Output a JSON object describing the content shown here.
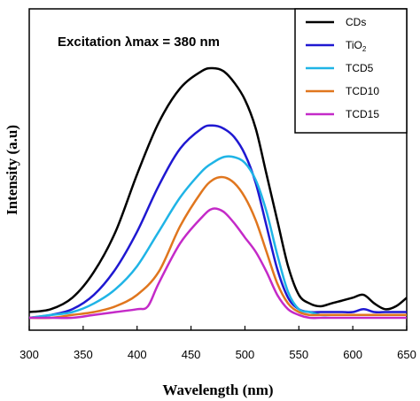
{
  "chart_data": {
    "type": "line",
    "title": "",
    "annotation": "Excitation λmax = 380 nm",
    "xlabel": "Wavelength (nm)",
    "ylabel": "Intensity (a.u)",
    "xlim": [
      300,
      650
    ],
    "ylim": [
      0,
      1.12
    ],
    "xticks": [
      300,
      350,
      400,
      450,
      500,
      550,
      600,
      650
    ],
    "grid": false,
    "legend_placement": "top-right",
    "series": [
      {
        "name": "CDs",
        "sub": "",
        "color": "#000000",
        "x": [
          300,
          320,
          340,
          360,
          380,
          400,
          420,
          440,
          460,
          470,
          480,
          490,
          500,
          510,
          520,
          530,
          540,
          550,
          560,
          570,
          580,
          590,
          600,
          610,
          620,
          630,
          640,
          650
        ],
        "y": [
          0.02,
          0.03,
          0.07,
          0.16,
          0.3,
          0.5,
          0.68,
          0.8,
          0.86,
          0.87,
          0.86,
          0.82,
          0.76,
          0.66,
          0.5,
          0.34,
          0.18,
          0.08,
          0.05,
          0.04,
          0.05,
          0.06,
          0.07,
          0.08,
          0.05,
          0.03,
          0.04,
          0.07
        ]
      },
      {
        "name": "TiO",
        "sub": "2",
        "color": "#1f18d1",
        "x": [
          300,
          320,
          340,
          360,
          380,
          400,
          420,
          440,
          460,
          470,
          480,
          490,
          500,
          510,
          520,
          530,
          540,
          550,
          560,
          570,
          580,
          590,
          600,
          610,
          620,
          630,
          640,
          650
        ],
        "y": [
          0.0,
          0.01,
          0.03,
          0.08,
          0.17,
          0.3,
          0.46,
          0.59,
          0.66,
          0.67,
          0.66,
          0.63,
          0.57,
          0.47,
          0.32,
          0.17,
          0.07,
          0.03,
          0.02,
          0.02,
          0.02,
          0.02,
          0.02,
          0.03,
          0.02,
          0.02,
          0.02,
          0.02
        ]
      },
      {
        "name": "TCD5",
        "sub": "",
        "color": "#1fb4e6",
        "x": [
          300,
          320,
          340,
          360,
          380,
          400,
          420,
          440,
          460,
          470,
          480,
          490,
          500,
          510,
          520,
          530,
          540,
          550,
          560,
          570,
          580,
          590,
          600,
          610,
          620,
          630,
          640,
          650
        ],
        "y": [
          0.0,
          0.01,
          0.02,
          0.05,
          0.1,
          0.18,
          0.3,
          0.42,
          0.51,
          0.54,
          0.56,
          0.56,
          0.54,
          0.48,
          0.37,
          0.22,
          0.09,
          0.03,
          0.02,
          0.01,
          0.01,
          0.01,
          0.01,
          0.01,
          0.01,
          0.01,
          0.01,
          0.01
        ]
      },
      {
        "name": "TCD10",
        "sub": "",
        "color": "#e0761e",
        "x": [
          300,
          320,
          340,
          360,
          380,
          400,
          420,
          440,
          460,
          470,
          480,
          490,
          500,
          510,
          520,
          530,
          540,
          550,
          560,
          570,
          580,
          590,
          600,
          610,
          620,
          630,
          640,
          650
        ],
        "y": [
          0.0,
          0.0,
          0.01,
          0.02,
          0.04,
          0.08,
          0.16,
          0.32,
          0.44,
          0.48,
          0.49,
          0.47,
          0.42,
          0.34,
          0.23,
          0.12,
          0.05,
          0.02,
          0.01,
          0.01,
          0.01,
          0.01,
          0.01,
          0.01,
          0.01,
          0.01,
          0.01,
          0.01
        ]
      },
      {
        "name": "TCD15",
        "sub": "",
        "color": "#c42ac8",
        "x": [
          300,
          320,
          340,
          360,
          380,
          400,
          410,
          420,
          440,
          460,
          470,
          480,
          490,
          500,
          510,
          520,
          530,
          540,
          550,
          560,
          570,
          580,
          590,
          600,
          610,
          620,
          630,
          640,
          650
        ],
        "y": [
          0.0,
          0.0,
          0.0,
          0.01,
          0.02,
          0.03,
          0.04,
          0.12,
          0.26,
          0.35,
          0.38,
          0.37,
          0.33,
          0.28,
          0.23,
          0.16,
          0.08,
          0.03,
          0.01,
          0.0,
          0.0,
          0.0,
          0.0,
          0.0,
          0.0,
          0.0,
          0.0,
          0.0,
          0.0
        ]
      }
    ]
  }
}
